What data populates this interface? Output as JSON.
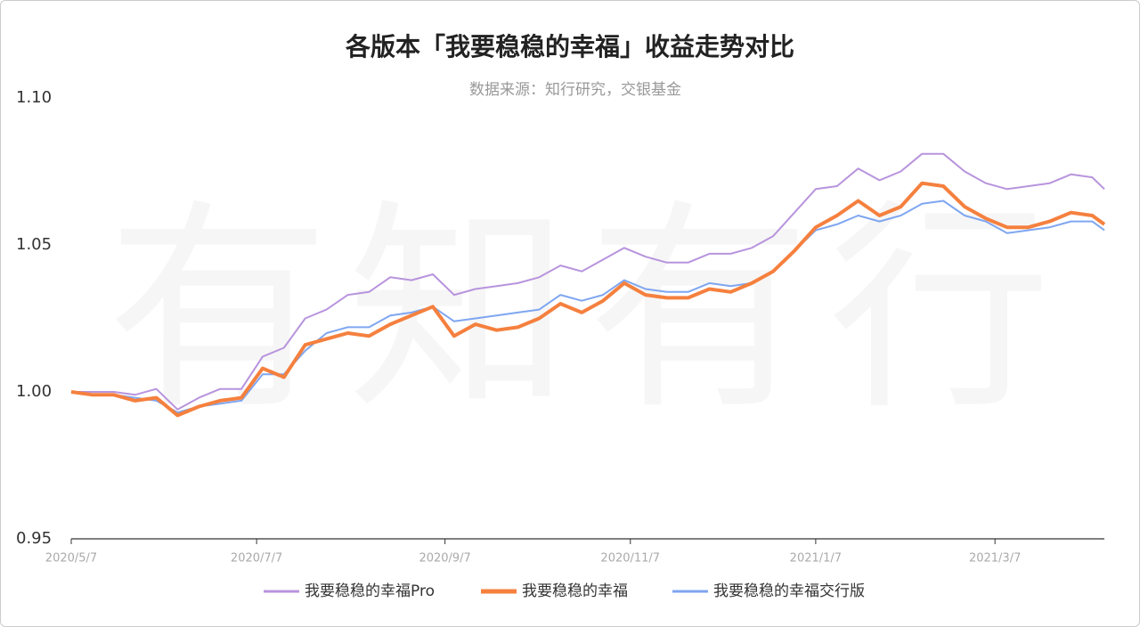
{
  "chart_data": {
    "type": "line",
    "title": "各版本「我要稳稳的幸福」收益走势对比",
    "subtitle": "数据来源：知行研究，交银基金",
    "watermark": "有知有行",
    "x": [
      "2020/5/7",
      "2020/5/14",
      "2020/5/21",
      "2020/5/28",
      "2020/6/4",
      "2020/6/11",
      "2020/6/18",
      "2020/6/25",
      "2020/7/2",
      "2020/7/9",
      "2020/7/16",
      "2020/7/23",
      "2020/7/30",
      "2020/8/6",
      "2020/8/13",
      "2020/8/20",
      "2020/8/27",
      "2020/9/3",
      "2020/9/10",
      "2020/9/17",
      "2020/9/24",
      "2020/10/1",
      "2020/10/8",
      "2020/10/15",
      "2020/10/22",
      "2020/10/29",
      "2020/11/5",
      "2020/11/12",
      "2020/11/19",
      "2020/11/26",
      "2020/12/3",
      "2020/12/10",
      "2020/12/17",
      "2020/12/24",
      "2020/12/31",
      "2021/1/7",
      "2021/1/14",
      "2021/1/21",
      "2021/1/28",
      "2021/2/4",
      "2021/2/11",
      "2021/2/18",
      "2021/2/25",
      "2021/3/4",
      "2021/3/11",
      "2021/3/18",
      "2021/3/25",
      "2021/4/1",
      "2021/4/8",
      "2021/4/12"
    ],
    "series": [
      {
        "name": "我要稳稳的幸福Pro",
        "color": "#b894dd",
        "width": 2,
        "values": [
          1.0,
          1.0,
          1.0,
          0.999,
          1.001,
          0.994,
          0.998,
          1.001,
          1.001,
          1.012,
          1.015,
          1.025,
          1.028,
          1.033,
          1.034,
          1.039,
          1.038,
          1.04,
          1.033,
          1.035,
          1.036,
          1.037,
          1.039,
          1.043,
          1.041,
          1.045,
          1.049,
          1.046,
          1.044,
          1.044,
          1.047,
          1.047,
          1.049,
          1.053,
          1.061,
          1.069,
          1.07,
          1.076,
          1.072,
          1.075,
          1.081,
          1.081,
          1.075,
          1.071,
          1.069,
          1.07,
          1.071,
          1.074,
          1.073,
          1.069
        ]
      },
      {
        "name": "我要稳稳的幸福",
        "color": "#f5803e",
        "width": 4,
        "values": [
          1.0,
          0.999,
          0.999,
          0.997,
          0.998,
          0.992,
          0.995,
          0.997,
          0.998,
          1.008,
          1.005,
          1.016,
          1.018,
          1.02,
          1.019,
          1.023,
          1.026,
          1.029,
          1.019,
          1.023,
          1.021,
          1.022,
          1.025,
          1.03,
          1.027,
          1.031,
          1.037,
          1.033,
          1.032,
          1.032,
          1.035,
          1.034,
          1.037,
          1.041,
          1.048,
          1.056,
          1.06,
          1.065,
          1.06,
          1.063,
          1.071,
          1.07,
          1.063,
          1.059,
          1.056,
          1.056,
          1.058,
          1.061,
          1.06,
          1.057
        ]
      },
      {
        "name": "我要稳稳的幸福交行版",
        "color": "#7fa6f0",
        "width": 2,
        "values": [
          1.0,
          0.999,
          0.999,
          0.998,
          0.997,
          0.993,
          0.995,
          0.996,
          0.997,
          1.006,
          1.006,
          1.014,
          1.02,
          1.022,
          1.022,
          1.026,
          1.027,
          1.029,
          1.024,
          1.025,
          1.026,
          1.027,
          1.028,
          1.033,
          1.031,
          1.033,
          1.038,
          1.035,
          1.034,
          1.034,
          1.037,
          1.036,
          1.037,
          1.041,
          1.048,
          1.055,
          1.057,
          1.06,
          1.058,
          1.06,
          1.064,
          1.065,
          1.06,
          1.058,
          1.054,
          1.055,
          1.056,
          1.058,
          1.058,
          1.055
        ]
      }
    ],
    "xlim": [
      "2020/5/7",
      "2021/4/12"
    ],
    "xticks": [
      "2020/5/7",
      "2020/7/7",
      "2020/9/7",
      "2020/11/7",
      "2021/1/7",
      "2021/3/7"
    ],
    "ylim": [
      0.95,
      1.1
    ],
    "yticks": [
      0.95,
      {
        "value": 1.0,
        "label": "1.00"
      },
      1.05,
      {
        "value": 1.1,
        "label": "1.10"
      }
    ],
    "legend": "bottom"
  }
}
